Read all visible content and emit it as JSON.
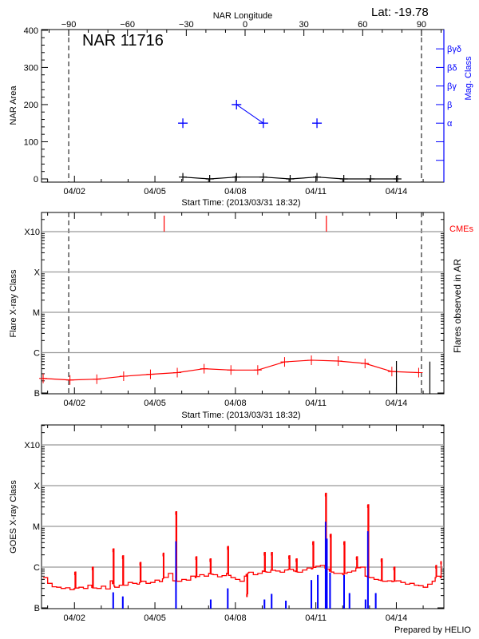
{
  "header": {
    "lat_label": "Lat: -19.78"
  },
  "chart_data": [
    {
      "type": "line",
      "title": "NAR 11716",
      "top_axis_label": "NAR Longitude",
      "top_ticks": [
        -90,
        -60,
        -30,
        0,
        30,
        60,
        90
      ],
      "ylabel": "NAR Area",
      "y2label": "Mag. Class",
      "xlabel": "Start Time: (2013/03/31 18:32)",
      "x_tick_labels": [
        "04/02",
        "04/05",
        "04/08",
        "04/11",
        "04/14"
      ],
      "y_ticks": [
        0,
        100,
        200,
        300,
        400
      ],
      "ylim": [
        0,
        400
      ],
      "limb_longitudes": [
        -90,
        90
      ],
      "mag_class_ticks": [
        {
          "value": 50,
          "label": ""
        },
        {
          "value": 100,
          "label": ""
        },
        {
          "value": 150,
          "label": "α"
        },
        {
          "value": 200,
          "label": "β"
        },
        {
          "value": 250,
          "label": "βγ"
        },
        {
          "value": 300,
          "label": "βδ"
        },
        {
          "value": 350,
          "label": "βγδ"
        }
      ],
      "area_series": {
        "color": "#000000",
        "times": [
          "2013-04-06 01:00",
          "2013-04-07 01:00",
          "2013-04-08 01:00",
          "2013-04-09 01:00",
          "2013-04-10 01:00",
          "2013-04-11 01:00",
          "2013-04-12 01:00",
          "2013-04-13 01:00",
          "2013-04-14 01:00"
        ],
        "values": [
          5,
          0,
          5,
          5,
          0,
          5,
          0,
          0,
          0
        ]
      },
      "mag_class_series": {
        "color": "#0000ff",
        "times": [
          "2013-04-06 01:00",
          "2013-04-08 01:00",
          "2013-04-09 01:00",
          "2013-04-11 01:00"
        ],
        "classes": [
          "α",
          "β",
          "α",
          "α"
        ]
      }
    },
    {
      "type": "line",
      "ylabel": "Flare X-ray Class",
      "y2label": "Flares observed in AR",
      "cme_label": "CMEs",
      "xlabel": "Start Time: (2013/03/31 18:32)",
      "x_tick_labels": [
        "04/02",
        "04/05",
        "04/08",
        "04/11",
        "04/14"
      ],
      "y_scale": "log",
      "y_ticks": [
        {
          "label": "B",
          "flux": 1e-07
        },
        {
          "label": "C",
          "flux": 1e-06
        },
        {
          "label": "M",
          "flux": 1e-05
        },
        {
          "label": "X",
          "flux": 0.0001
        },
        {
          "label": "X10",
          "flux": 0.001
        }
      ],
      "grid": true,
      "flare_level": {
        "color": "#ff0000",
        "times": [
          "2013-03-31 20:00",
          "2013-04-01 20:00",
          "2013-04-02 20:00",
          "2013-04-03 20:00",
          "2013-04-04 20:00",
          "2013-04-05 20:00",
          "2013-04-06 20:00",
          "2013-04-07 20:00",
          "2013-04-08 20:00",
          "2013-04-09 20:00",
          "2013-04-10 20:00",
          "2013-04-11 20:00",
          "2013-04-12 20:00",
          "2013-04-13 20:00",
          "2013-04-14 20:00"
        ],
        "flux": [
          2.3e-07,
          2.1e-07,
          2.2e-07,
          2.6e-07,
          2.9e-07,
          3.2e-07,
          4e-07,
          3.7e-07,
          3.7e-07,
          5.9e-07,
          6.5e-07,
          6.2e-07,
          5.4e-07,
          3.4e-07,
          3.2e-07
        ]
      },
      "flares_observed": [
        {
          "time": "2013-04-14 00:05",
          "flux": 6.2e-07
        },
        {
          "time": "2013-04-15 06:00",
          "flux": 6e-07
        }
      ],
      "cmes": {
        "color": "#ff0000",
        "times": [
          "2013-04-05 08:15",
          "2013-04-11 09:25"
        ]
      }
    },
    {
      "type": "line",
      "ylabel": "GOES X-ray Class",
      "x_tick_labels": [
        "04/02",
        "04/05",
        "04/08",
        "04/11",
        "04/14"
      ],
      "y_scale": "log",
      "y_ticks": [
        {
          "label": "B",
          "flux": 1e-07
        },
        {
          "label": "C",
          "flux": 1e-06
        },
        {
          "label": "M",
          "flux": 1e-05
        },
        {
          "label": "X",
          "flux": 0.0001
        },
        {
          "label": "X10",
          "flux": 0.001
        }
      ],
      "grid": true,
      "long_channel": {
        "color": "#ff0000",
        "start": "2013-03-31 20:00",
        "sample_interval_hours": 4,
        "background_flux": [
          5.5e-07,
          4e-07,
          3.3e-07,
          3.2e-07,
          3e-07,
          3.1e-07,
          2.8e-07,
          3e-07,
          3.2e-07,
          3e-07,
          3.6e-07,
          3.1e-07,
          3e-07,
          3.4e-07,
          2.9e-07,
          4.6e-07,
          3.2e-07,
          3.6e-07,
          3.6e-07,
          4.2e-07,
          4e-07,
          3.8e-07,
          4.5e-07,
          4e-07,
          4.2e-07,
          4.8e-07,
          4.4e-07,
          5.5e-07,
          7e-07,
          4.6e-07,
          4.5e-07,
          5e-07,
          4.8e-07,
          6e-07,
          5.5e-07,
          6.5e-07,
          6e-07,
          7e-07,
          6.5e-07,
          5.8e-07,
          6.2e-07,
          7e-07,
          5.5e-07,
          5e-07,
          4.5e-07,
          6e-07,
          7.5e-07,
          6.5e-07,
          7e-07,
          8e-07,
          7.5e-07,
          8.5e-07,
          8e-07,
          7.5e-07,
          8.5e-07,
          9e-07,
          8e-07,
          7.5e-07,
          8.5e-07,
          9.5e-07,
          9e-07,
          1.05e-06,
          1.1e-06,
          9.5e-07,
          8e-07,
          7e-07,
          7e-07,
          6.5e-07,
          7.5e-07,
          8e-07,
          9.5e-07,
          1e-06,
          6e-07,
          5.5e-07,
          5e-07,
          4.8e-07,
          4.5e-07,
          4.6e-07,
          4.4e-07,
          4.6e-07,
          4.2e-07,
          3.8e-07,
          4e-07,
          3.6e-07,
          3.5e-07,
          3.2e-07,
          3.8e-07,
          4.5e-07,
          6e-07,
          5.5e-07
        ],
        "peaks": [
          {
            "time": "2013-04-02 00:30",
            "flux": 7.6e-07
          },
          {
            "time": "2013-04-02 16:10",
            "flux": 1e-06
          },
          {
            "time": "2013-04-03 10:40",
            "flux": 2.8e-06
          },
          {
            "time": "2013-04-03 19:15",
            "flux": 1.9e-06
          },
          {
            "time": "2013-04-04 10:50",
            "flux": 1.3e-06
          },
          {
            "time": "2013-04-05 07:30",
            "flux": 2.2e-06
          },
          {
            "time": "2013-04-05 18:50",
            "flux": 2.3e-05
          },
          {
            "time": "2013-04-06 12:50",
            "flux": 1.8e-06
          },
          {
            "time": "2013-04-07 01:30",
            "flux": 1.6e-06
          },
          {
            "time": "2013-04-07 17:10",
            "flux": 3.2e-06
          },
          {
            "time": "2013-04-08 10:20",
            "flux": 2.2e-07
          },
          {
            "time": "2013-04-09 02:00",
            "flux": 2.3e-06
          },
          {
            "time": "2013-04-09 08:25",
            "flux": 2.3e-06
          },
          {
            "time": "2013-04-10 00:00",
            "flux": 1.9e-06
          },
          {
            "time": "2013-04-10 06:30",
            "flux": 1.6e-06
          },
          {
            "time": "2013-04-10 21:25",
            "flux": 4.2e-06
          },
          {
            "time": "2013-04-11 08:45",
            "flux": 6.5e-05
          },
          {
            "time": "2013-04-11 13:00",
            "flux": 6.4e-06
          },
          {
            "time": "2013-04-12 01:15",
            "flux": 4.2e-06
          },
          {
            "time": "2013-04-12 12:30",
            "flux": 1.8e-06
          },
          {
            "time": "2013-04-12 22:35",
            "flux": 3.4e-05
          },
          {
            "time": "2013-04-13 10:40",
            "flux": 1.6e-06
          },
          {
            "time": "2013-04-13 22:00",
            "flux": 1e-06
          },
          {
            "time": "2013-04-15 11:30",
            "flux": 1.1e-06
          },
          {
            "time": "2013-04-15 16:00",
            "flux": 1.4e-06
          }
        ]
      },
      "short_channel": {
        "color": "#0000ff",
        "peaks": [
          {
            "time": "2013-04-03 10:40",
            "flux": 2.4e-07
          },
          {
            "time": "2013-04-03 19:15",
            "flux": 1.9e-07
          },
          {
            "time": "2013-04-05 18:50",
            "flux": 4.3e-06
          },
          {
            "time": "2013-04-07 01:55",
            "flux": 1.6e-07
          },
          {
            "time": "2013-04-07 17:10",
            "flux": 3e-07
          },
          {
            "time": "2013-04-09 02:00",
            "flux": 1.6e-07
          },
          {
            "time": "2013-04-09 08:25",
            "flux": 2.2e-07
          },
          {
            "time": "2013-04-09 21:10",
            "flux": 1.5e-07
          },
          {
            "time": "2013-04-10 20:00",
            "flux": 4.8e-07
          },
          {
            "time": "2013-04-11 01:45",
            "flux": 6.4e-07
          },
          {
            "time": "2013-04-11 08:45",
            "flux": 1.3e-05
          },
          {
            "time": "2013-04-11 09:50",
            "flux": 5e-06
          },
          {
            "time": "2013-04-11 12:40",
            "flux": 7.3e-07
          },
          {
            "time": "2013-04-12 01:15",
            "flux": 6.4e-07
          },
          {
            "time": "2013-04-12 06:05",
            "flux": 2.3e-07
          },
          {
            "time": "2013-04-12 20:25",
            "flux": 1.6e-07
          },
          {
            "time": "2013-04-12 22:35",
            "flux": 7.6e-06
          },
          {
            "time": "2013-04-13 05:35",
            "flux": 2.3e-07
          }
        ]
      }
    }
  ],
  "footer": {
    "credit": "Prepared by HELIO"
  }
}
